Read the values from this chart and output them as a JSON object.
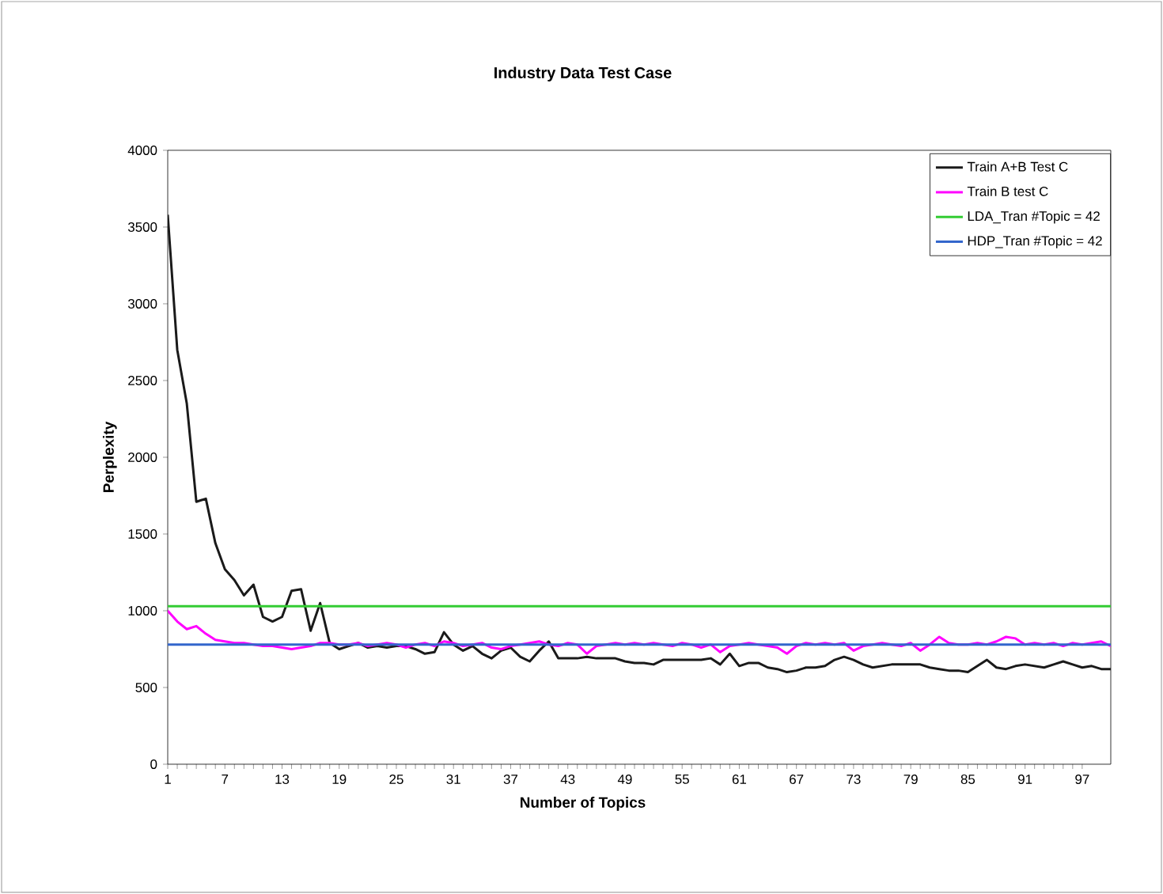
{
  "chart_data": {
    "type": "line",
    "title": "Industry Data Test Case",
    "xlabel": "Number of Topics",
    "ylabel": "Perplexity",
    "x": [
      1,
      2,
      3,
      4,
      5,
      6,
      7,
      8,
      9,
      10,
      11,
      12,
      13,
      14,
      15,
      16,
      17,
      18,
      19,
      20,
      21,
      22,
      23,
      24,
      25,
      26,
      27,
      28,
      29,
      30,
      31,
      32,
      33,
      34,
      35,
      36,
      37,
      38,
      39,
      40,
      41,
      42,
      43,
      44,
      45,
      46,
      47,
      48,
      49,
      50,
      51,
      52,
      53,
      54,
      55,
      56,
      57,
      58,
      59,
      60,
      61,
      62,
      63,
      64,
      65,
      66,
      67,
      68,
      69,
      70,
      71,
      72,
      73,
      74,
      75,
      76,
      77,
      78,
      79,
      80,
      81,
      82,
      83,
      84,
      85,
      86,
      87,
      88,
      89,
      90,
      91,
      92,
      93,
      94,
      95,
      96,
      97,
      98,
      99,
      100
    ],
    "series": [
      {
        "name": "Train A+B Test C",
        "color": "#1a1a1a",
        "values": [
          3580,
          2700,
          2350,
          1710,
          1730,
          1440,
          1270,
          1200,
          1100,
          1170,
          960,
          930,
          960,
          1130,
          1140,
          870,
          1050,
          790,
          750,
          770,
          790,
          760,
          770,
          760,
          770,
          770,
          750,
          720,
          730,
          860,
          780,
          740,
          770,
          720,
          690,
          740,
          760,
          700,
          670,
          740,
          800,
          690,
          690,
          690,
          700,
          690,
          690,
          690,
          670,
          660,
          660,
          650,
          680,
          680,
          680,
          680,
          680,
          690,
          650,
          720,
          640,
          660,
          660,
          630,
          620,
          600,
          610,
          630,
          630,
          640,
          680,
          700,
          680,
          650,
          630,
          640,
          650,
          650,
          650,
          650,
          630,
          620,
          610,
          610,
          600,
          640,
          680,
          630,
          620,
          640,
          650,
          640,
          630,
          650,
          670,
          650,
          630,
          640,
          620,
          620
        ]
      },
      {
        "name": "Train B test C",
        "color": "#ff00ff",
        "values": [
          1000,
          930,
          880,
          900,
          850,
          810,
          800,
          790,
          790,
          780,
          770,
          770,
          760,
          750,
          760,
          770,
          790,
          790,
          780,
          780,
          790,
          770,
          780,
          790,
          780,
          760,
          780,
          790,
          770,
          800,
          790,
          770,
          780,
          790,
          760,
          750,
          770,
          780,
          790,
          800,
          780,
          770,
          790,
          780,
          720,
          770,
          780,
          790,
          780,
          790,
          780,
          790,
          780,
          770,
          790,
          780,
          760,
          780,
          730,
          770,
          780,
          790,
          780,
          770,
          760,
          720,
          770,
          790,
          780,
          790,
          780,
          790,
          740,
          770,
          780,
          790,
          780,
          770,
          790,
          740,
          780,
          830,
          790,
          780,
          780,
          790,
          780,
          800,
          830,
          820,
          780,
          790,
          780,
          790,
          770,
          790,
          780,
          790,
          800,
          770
        ]
      },
      {
        "name": "LDA_Tran #Topic = 42",
        "color": "#33cc33",
        "values": [
          1030,
          1030,
          1030,
          1030,
          1030,
          1030,
          1030,
          1030,
          1030,
          1030,
          1030,
          1030,
          1030,
          1030,
          1030,
          1030,
          1030,
          1030,
          1030,
          1030,
          1030,
          1030,
          1030,
          1030,
          1030,
          1030,
          1030,
          1030,
          1030,
          1030,
          1030,
          1030,
          1030,
          1030,
          1030,
          1030,
          1030,
          1030,
          1030,
          1030,
          1030,
          1030,
          1030,
          1030,
          1030,
          1030,
          1030,
          1030,
          1030,
          1030,
          1030,
          1030,
          1030,
          1030,
          1030,
          1030,
          1030,
          1030,
          1030,
          1030,
          1030,
          1030,
          1030,
          1030,
          1030,
          1030,
          1030,
          1030,
          1030,
          1030,
          1030,
          1030,
          1030,
          1030,
          1030,
          1030,
          1030,
          1030,
          1030,
          1030,
          1030,
          1030,
          1030,
          1030,
          1030,
          1030,
          1030,
          1030,
          1030,
          1030,
          1030,
          1030,
          1030,
          1030,
          1030,
          1030,
          1030,
          1030,
          1030,
          1030
        ]
      },
      {
        "name": "HDP_Tran #Topic = 42",
        "color": "#3366cc",
        "values": [
          780,
          780,
          780,
          780,
          780,
          780,
          780,
          780,
          780,
          780,
          780,
          780,
          780,
          780,
          780,
          780,
          780,
          780,
          780,
          780,
          780,
          780,
          780,
          780,
          780,
          780,
          780,
          780,
          780,
          780,
          780,
          780,
          780,
          780,
          780,
          780,
          780,
          780,
          780,
          780,
          780,
          780,
          780,
          780,
          780,
          780,
          780,
          780,
          780,
          780,
          780,
          780,
          780,
          780,
          780,
          780,
          780,
          780,
          780,
          780,
          780,
          780,
          780,
          780,
          780,
          780,
          780,
          780,
          780,
          780,
          780,
          780,
          780,
          780,
          780,
          780,
          780,
          780,
          780,
          780,
          780,
          780,
          780,
          780,
          780,
          780,
          780,
          780,
          780,
          780,
          780,
          780,
          780,
          780,
          780,
          780,
          780,
          780,
          780,
          780
        ]
      }
    ],
    "xlim": [
      1,
      100
    ],
    "xticks": [
      1,
      7,
      13,
      19,
      25,
      31,
      37,
      43,
      49,
      55,
      61,
      67,
      73,
      79,
      85,
      91,
      97
    ],
    "ylim": [
      0,
      4000
    ],
    "yticks": [
      0,
      500,
      1000,
      1500,
      2000,
      2500,
      3000,
      3500,
      4000
    ],
    "grid": false,
    "legend": "top right",
    "marker": "none",
    "line_style": "solid"
  }
}
